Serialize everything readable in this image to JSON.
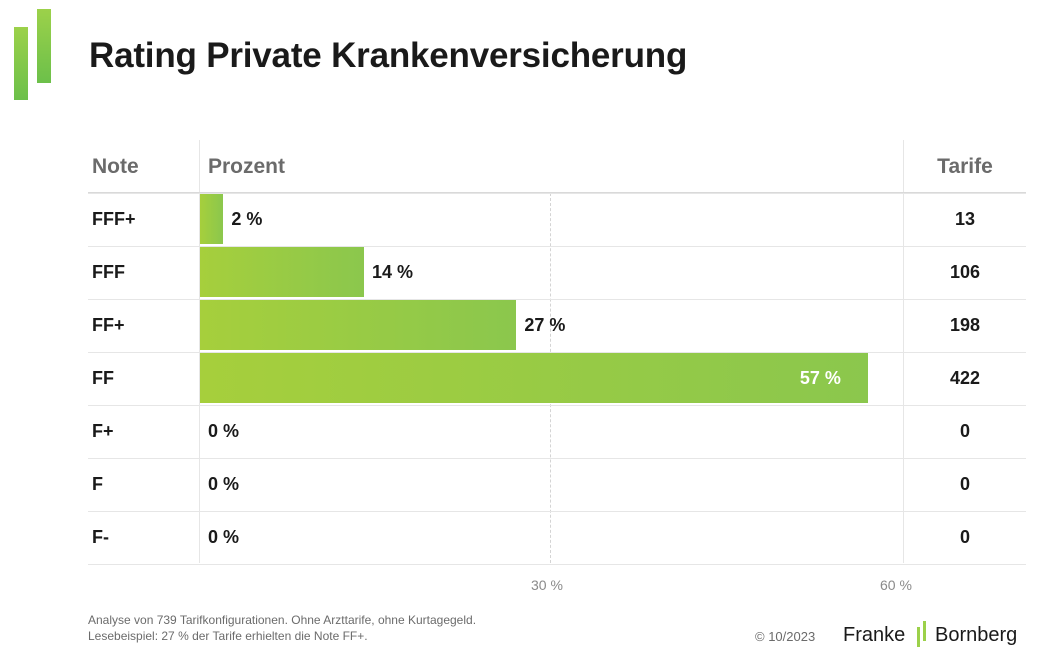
{
  "title": "Rating Private Krankenversicherung",
  "headers": {
    "note": "Note",
    "prozent": "Prozent",
    "tarife": "Tarife"
  },
  "chart_data": {
    "type": "bar",
    "orientation": "horizontal",
    "categories": [
      "FFF+",
      "FFF",
      "FF+",
      "FF",
      "F+",
      "F",
      "F-"
    ],
    "values": [
      2,
      14,
      27,
      57,
      0,
      0,
      0
    ],
    "value_labels": [
      "2 %",
      "14 %",
      "27 %",
      "57 %",
      "0 %",
      "0 %",
      "0 %"
    ],
    "tarife": [
      "13",
      "106",
      "198",
      "422",
      "0",
      "0",
      "0"
    ],
    "xlim": [
      0,
      60
    ],
    "x_ticks": [
      "30 %",
      "60 %"
    ],
    "ylabel": "Note",
    "xlabel": "Prozent",
    "bar_color": "#9ccb45"
  },
  "footnotes": [
    "Analyse von 739 Tarifkonfigurationen. Ohne Arzttarife, ohne Kurtagegeld.",
    "Lesebeispiel: 27 % der Tarife erhielten die Note FF+."
  ],
  "copyright": "© 10/2023",
  "brand": {
    "part1": "Franke",
    "part2": "Bornberg",
    "accent": "#9cd14a"
  }
}
